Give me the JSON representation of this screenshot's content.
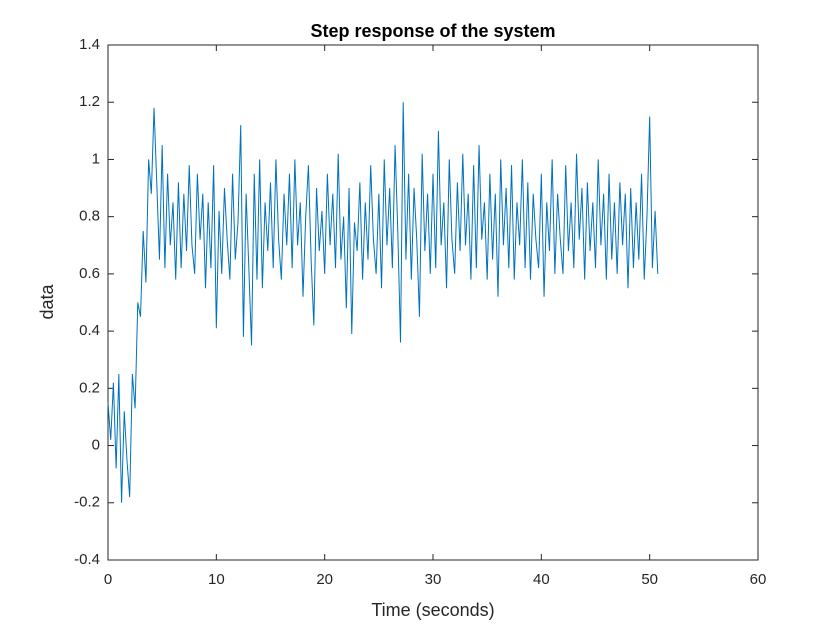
{
  "chart_data": {
    "type": "line",
    "title": "Step response of the system",
    "xlabel": "Time (seconds)",
    "ylabel": "data",
    "xlim": [
      0,
      60
    ],
    "xticks": [
      0,
      10,
      20,
      30,
      40,
      50,
      60
    ],
    "ylim": [
      -0.4,
      1.4
    ],
    "yticks": [
      -0.4,
      -0.2,
      0,
      0.2,
      0.4,
      0.6,
      0.8,
      1,
      1.2,
      1.4
    ],
    "grid": false,
    "x": [
      0,
      0.25,
      0.5,
      0.75,
      1,
      1.25,
      1.5,
      1.75,
      2,
      2.25,
      2.5,
      2.75,
      3,
      3.25,
      3.5,
      3.75,
      4,
      4.25,
      4.5,
      4.75,
      5,
      5.25,
      5.5,
      5.75,
      6,
      6.25,
      6.5,
      6.75,
      7,
      7.25,
      7.5,
      7.75,
      8,
      8.25,
      8.5,
      8.75,
      9,
      9.25,
      9.5,
      9.75,
      10,
      10.25,
      10.5,
      10.75,
      11,
      11.25,
      11.5,
      11.75,
      12,
      12.25,
      12.5,
      12.75,
      13,
      13.25,
      13.5,
      13.75,
      14,
      14.25,
      14.5,
      14.75,
      15,
      15.25,
      15.5,
      15.75,
      16,
      16.25,
      16.5,
      16.75,
      17,
      17.25,
      17.5,
      17.75,
      18,
      18.25,
      18.5,
      18.75,
      19,
      19.25,
      19.5,
      19.75,
      20,
      20.25,
      20.5,
      20.75,
      21,
      21.25,
      21.5,
      21.75,
      22,
      22.25,
      22.5,
      22.75,
      23,
      23.25,
      23.5,
      23.75,
      24,
      24.25,
      24.5,
      24.75,
      25,
      25.25,
      25.5,
      25.75,
      26,
      26.25,
      26.5,
      26.75,
      27,
      27.25,
      27.5,
      27.75,
      28,
      28.25,
      28.5,
      28.75,
      29,
      29.25,
      29.5,
      29.75,
      30,
      30.25,
      30.5,
      30.75,
      31,
      31.25,
      31.5,
      31.75,
      32,
      32.25,
      32.5,
      32.75,
      33,
      33.25,
      33.5,
      33.75,
      34,
      34.25,
      34.5,
      34.75,
      35,
      35.25,
      35.5,
      35.75,
      36,
      36.25,
      36.5,
      36.75,
      37,
      37.25,
      37.5,
      37.75,
      38,
      38.25,
      38.5,
      38.75,
      39,
      39.25,
      39.5,
      39.75,
      40,
      40.25,
      40.5,
      40.75,
      41,
      41.25,
      41.5,
      41.75,
      42,
      42.25,
      42.5,
      42.75,
      43,
      43.25,
      43.5,
      43.75,
      44,
      44.25,
      44.5,
      44.75,
      45,
      45.25,
      45.5,
      45.75,
      46,
      46.25,
      46.5,
      46.75,
      47,
      47.25,
      47.5,
      47.75,
      48,
      48.25,
      48.5,
      48.75,
      49,
      49.25,
      49.5,
      49.75,
      50,
      50.25,
      50.5,
      50.75
    ],
    "series": [
      {
        "color": "#0072bd",
        "values": [
          0.15,
          0.02,
          0.22,
          -0.08,
          0.25,
          -0.2,
          0.12,
          -0.05,
          -0.18,
          0.25,
          0.13,
          0.5,
          0.45,
          0.75,
          0.57,
          1.0,
          0.88,
          1.18,
          0.92,
          0.65,
          1.05,
          0.62,
          0.95,
          0.7,
          0.85,
          0.58,
          0.92,
          0.62,
          0.88,
          0.68,
          0.98,
          0.7,
          0.6,
          0.95,
          0.72,
          0.88,
          0.55,
          0.85,
          0.62,
          0.98,
          0.41,
          0.82,
          0.6,
          0.9,
          0.72,
          0.58,
          0.95,
          0.65,
          0.78,
          1.12,
          0.38,
          0.88,
          0.62,
          0.35,
          0.95,
          0.58,
          1.0,
          0.55,
          0.85,
          0.68,
          0.92,
          0.62,
          1.0,
          0.72,
          0.58,
          0.88,
          0.7,
          0.95,
          0.62,
          1.0,
          0.7,
          0.85,
          0.52,
          0.8,
          0.98,
          0.65,
          0.42,
          0.9,
          0.68,
          0.82,
          0.6,
          0.95,
          0.7,
          0.88,
          0.62,
          1.02,
          0.65,
          0.8,
          0.48,
          0.9,
          0.39,
          0.78,
          0.68,
          0.92,
          0.58,
          0.85,
          0.65,
          0.98,
          0.72,
          0.6,
          0.88,
          0.55,
          1.0,
          0.7,
          0.9,
          0.62,
          1.05,
          0.75,
          0.36,
          1.2,
          0.65,
          0.95,
          0.58,
          0.9,
          0.72,
          0.45,
          1.02,
          0.68,
          0.88,
          0.6,
          0.95,
          0.62,
          1.1,
          0.7,
          0.85,
          0.55,
          1.0,
          0.72,
          0.6,
          0.92,
          0.68,
          1.02,
          0.7,
          0.88,
          0.58,
          0.98,
          0.62,
          1.05,
          0.72,
          0.85,
          0.58,
          0.95,
          0.65,
          0.88,
          0.52,
          1.0,
          0.7,
          0.9,
          0.62,
          0.98,
          0.58,
          0.85,
          0.7,
          1.0,
          0.62,
          0.92,
          0.58,
          0.88,
          0.72,
          0.62,
          0.95,
          0.52,
          0.85,
          0.68,
          1.0,
          0.6,
          0.88,
          0.72,
          0.6,
          0.98,
          0.68,
          0.85,
          0.62,
          1.02,
          0.72,
          0.9,
          0.58,
          0.92,
          0.68,
          0.85,
          0.62,
          1.0,
          0.7,
          0.88,
          0.58,
          0.95,
          0.65,
          0.85,
          0.6,
          0.92,
          0.7,
          0.88,
          0.55,
          0.9,
          0.62,
          0.85,
          0.65,
          0.95,
          0.58,
          0.8,
          1.15,
          0.62,
          0.82,
          0.6
        ]
      }
    ]
  }
}
